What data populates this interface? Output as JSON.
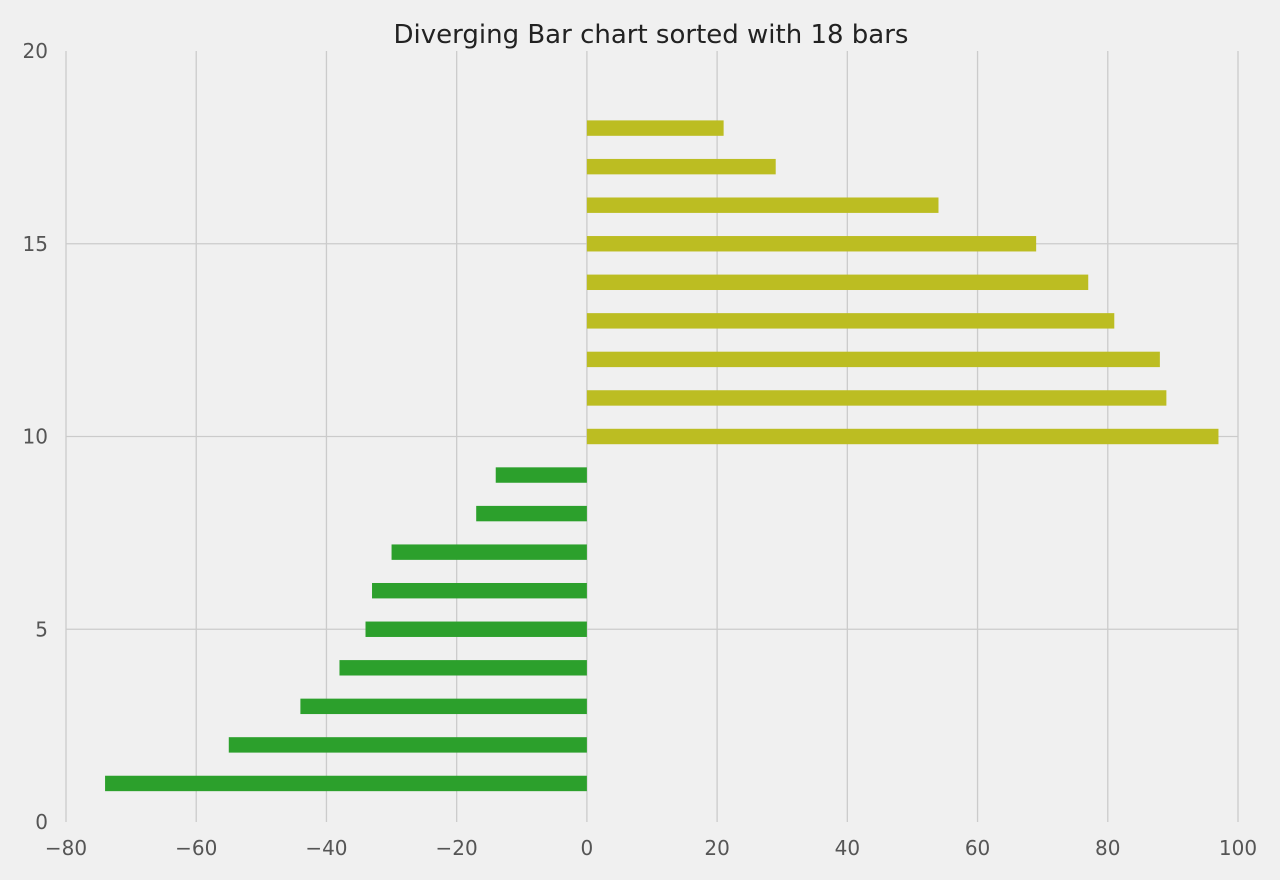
{
  "chart_data": {
    "type": "bar",
    "orientation": "horizontal",
    "title": "Diverging Bar chart sorted with 18 bars",
    "xlabel": "",
    "ylabel": "",
    "x_range": [
      -80,
      100
    ],
    "y_range": [
      0,
      20
    ],
    "x_ticks": [
      "−80",
      "−60",
      "−40",
      "−20",
      "0",
      "20",
      "40",
      "60",
      "80",
      "100"
    ],
    "y_ticks": [
      "0",
      "5",
      "10",
      "15",
      "20"
    ],
    "grid": true,
    "legend": "none",
    "colors": {
      "negative": "#2ca02c",
      "positive": "#bcbd22",
      "background": "#f0f0f0",
      "grid": "#cbcbcb"
    },
    "bars": [
      {
        "y": 1,
        "value": -74
      },
      {
        "y": 2,
        "value": -55
      },
      {
        "y": 3,
        "value": -44
      },
      {
        "y": 4,
        "value": -38
      },
      {
        "y": 5,
        "value": -34
      },
      {
        "y": 6,
        "value": -33
      },
      {
        "y": 7,
        "value": -30
      },
      {
        "y": 8,
        "value": -17
      },
      {
        "y": 9,
        "value": -14
      },
      {
        "y": 10,
        "value": 97
      },
      {
        "y": 11,
        "value": 89
      },
      {
        "y": 12,
        "value": 88
      },
      {
        "y": 13,
        "value": 81
      },
      {
        "y": 14,
        "value": 77
      },
      {
        "y": 15,
        "value": 69
      },
      {
        "y": 16,
        "value": 54
      },
      {
        "y": 17,
        "value": 29
      },
      {
        "y": 18,
        "value": 21
      }
    ]
  }
}
